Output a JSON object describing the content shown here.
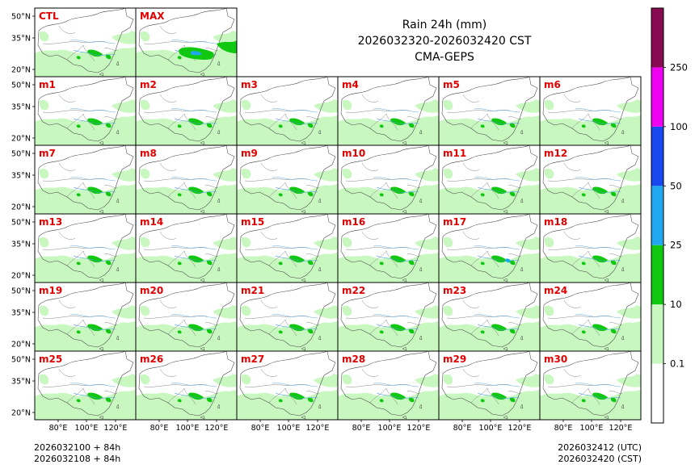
{
  "title": {
    "line1": "Rain 24h (mm)",
    "line2": "2026032320-2026032420 CST",
    "line3": "CMA-GEPS"
  },
  "panels": {
    "top": [
      "CTL",
      "MAX"
    ],
    "members": [
      "m1",
      "m2",
      "m3",
      "m4",
      "m5",
      "m6",
      "m7",
      "m8",
      "m9",
      "m10",
      "m11",
      "m12",
      "m13",
      "m14",
      "m15",
      "m16",
      "m17",
      "m18",
      "m19",
      "m20",
      "m21",
      "m22",
      "m23",
      "m24",
      "m25",
      "m26",
      "m27",
      "m28",
      "m29",
      "m30"
    ]
  },
  "lat_labels": [
    "50°N",
    "35°N",
    "20°N"
  ],
  "lon_labels": [
    "80°E",
    "100°E",
    "120°E"
  ],
  "colorbar": {
    "colors": [
      "#ffffff",
      "#c8f8c0",
      "#10c810",
      "#20a8f0",
      "#1848f0",
      "#f000f0",
      "#880a50"
    ],
    "labels": [
      "0.1",
      "10",
      "25",
      "50",
      "100",
      "250"
    ]
  },
  "footer": {
    "left_line1": "2026032100 + 84h",
    "left_line2": "2026032108 + 84h",
    "right_line1": "2026032412 (UTC)",
    "right_line2": "2026032420 (CST)"
  },
  "colors": {
    "panel_label": "#e00000",
    "light_rain": "#c8f8c0",
    "moderate_rain": "#10c810",
    "heavy_rain": "#20a8f0",
    "river": "#4a9de0"
  }
}
